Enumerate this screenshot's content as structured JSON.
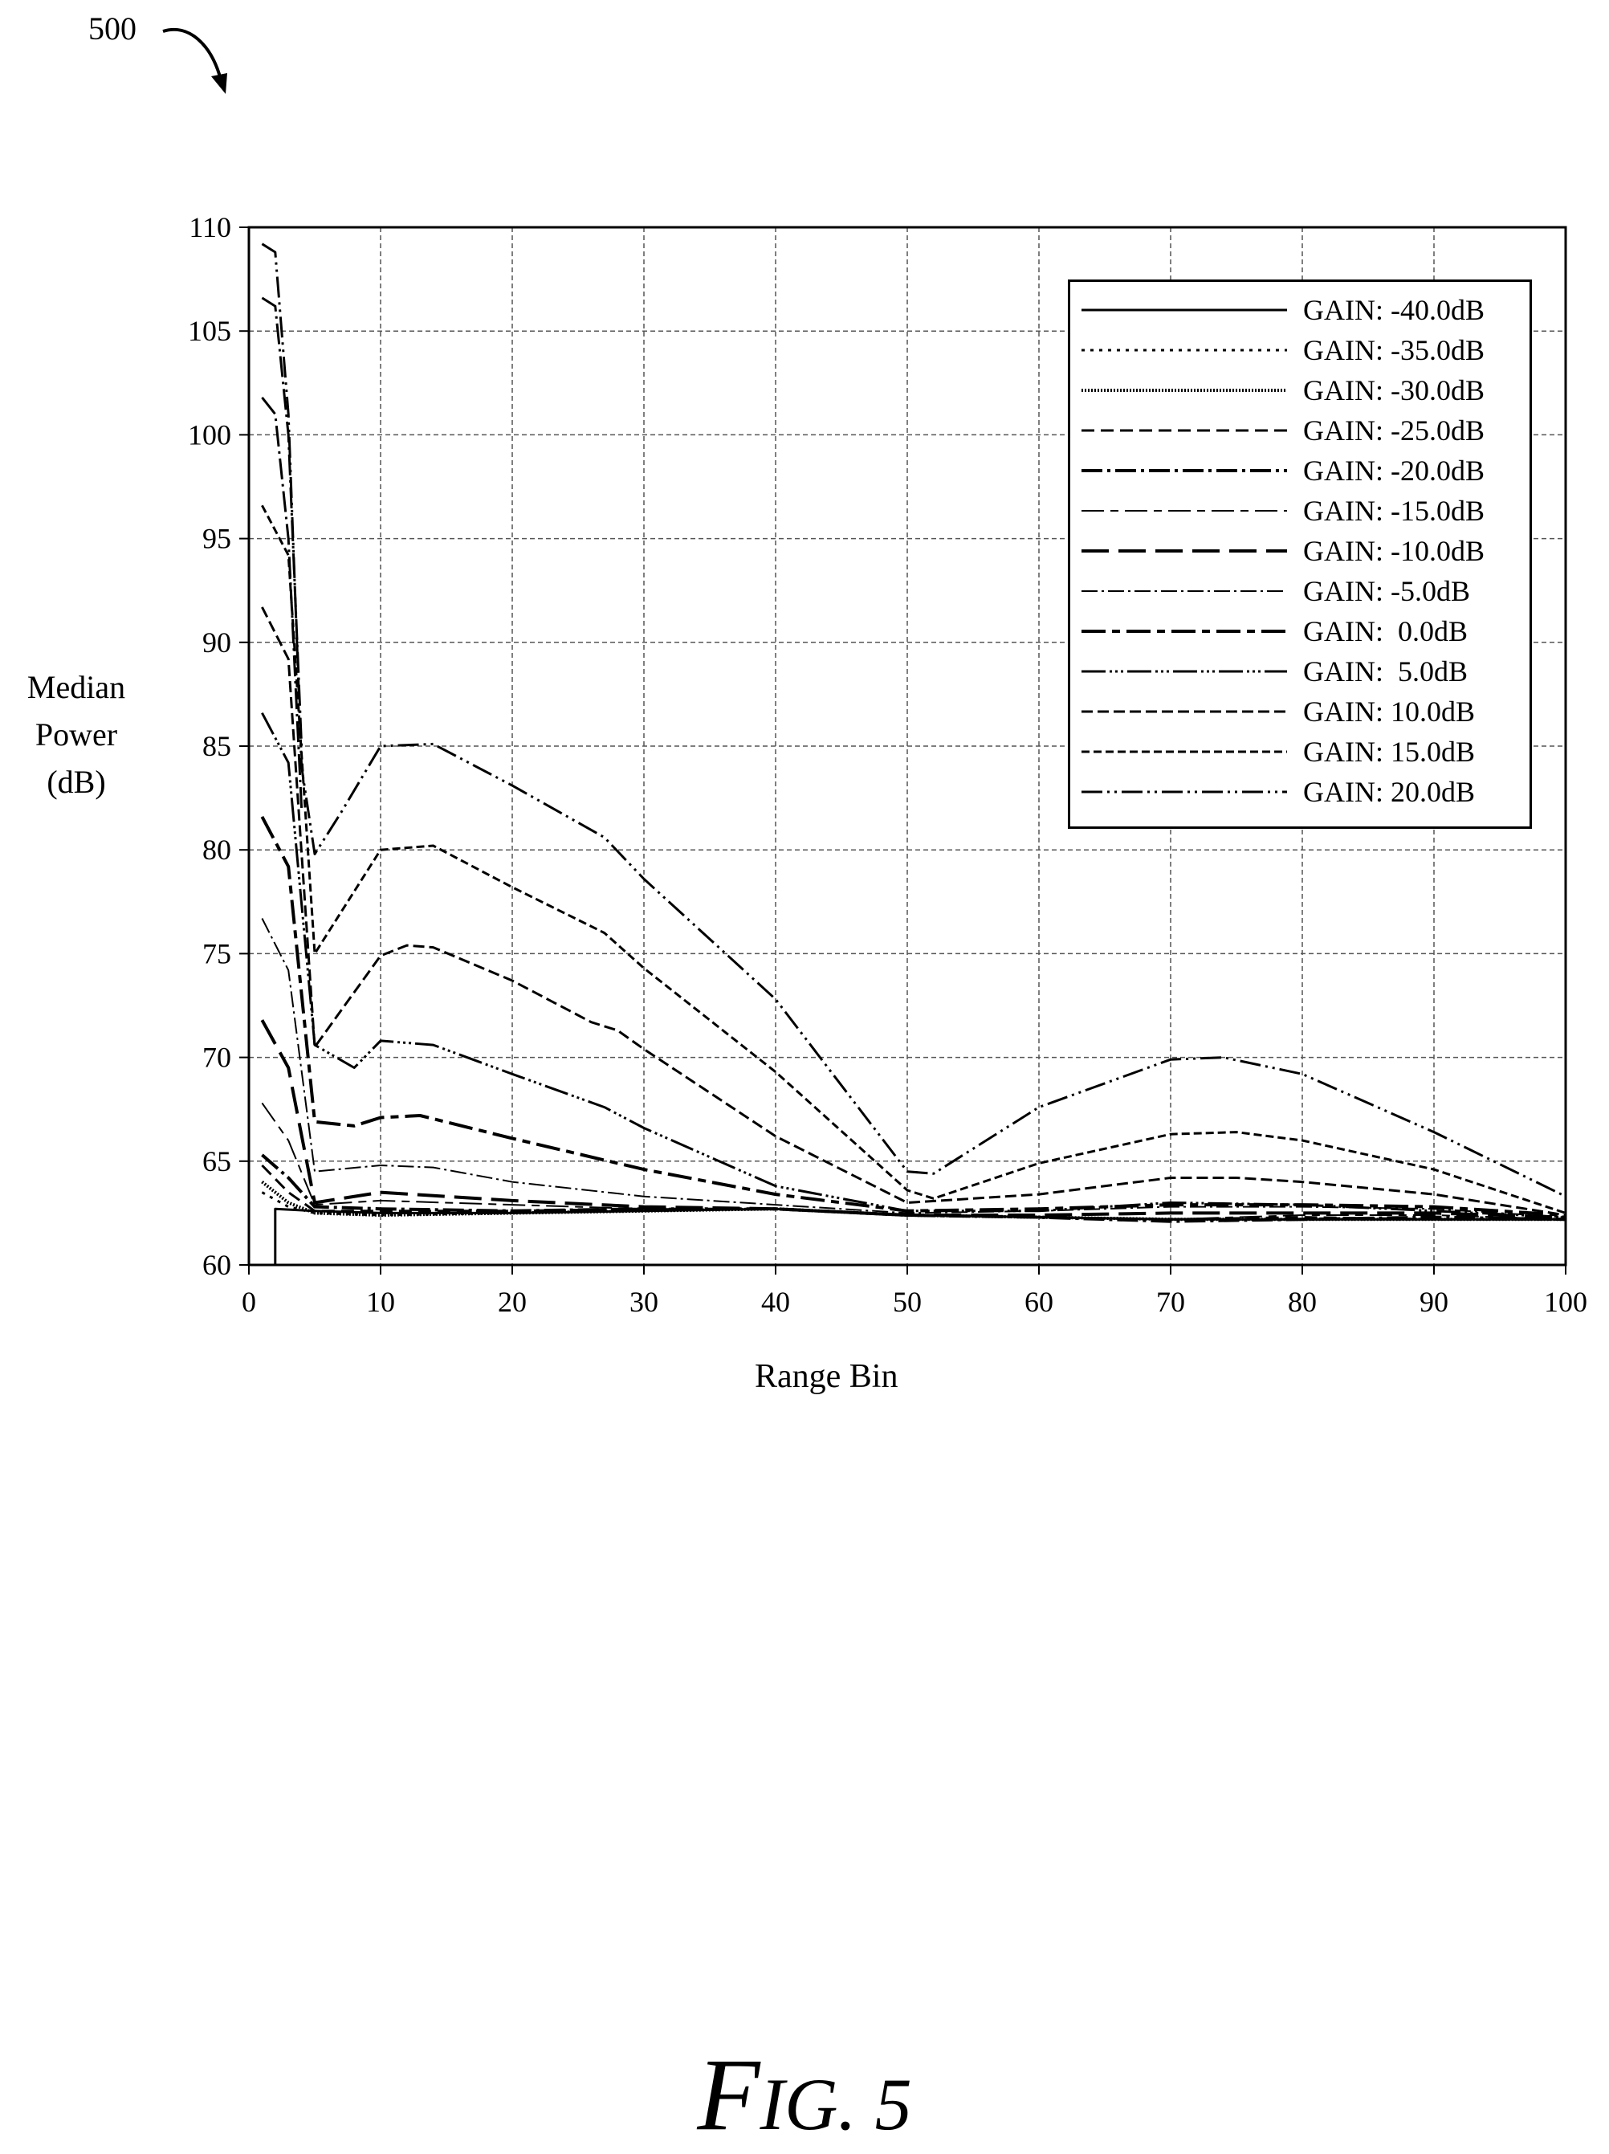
{
  "figure": {
    "ref_number": "500",
    "caption_F": "F",
    "caption_rest": "IG. 5"
  },
  "chart_data": {
    "type": "line",
    "title": "",
    "xlabel": "Range Bin",
    "ylabel_lines": [
      "Median",
      "Power",
      "(dB)"
    ],
    "xlim": [
      0,
      100
    ],
    "ylim": [
      60,
      110
    ],
    "xticks": [
      0,
      10,
      20,
      30,
      40,
      50,
      60,
      70,
      80,
      90,
      100
    ],
    "yticks": [
      60,
      65,
      70,
      75,
      80,
      85,
      90,
      95,
      100,
      105,
      110
    ],
    "grid": true,
    "legend_position": "top-right",
    "series": [
      {
        "name": "GAIN: -40.0dB",
        "dash": "",
        "width": 3,
        "points": [
          [
            2,
            60
          ],
          [
            2,
            62.7
          ],
          [
            5,
            62.6
          ],
          [
            10,
            62.5
          ],
          [
            20,
            62.5
          ],
          [
            30,
            62.6
          ],
          [
            40,
            62.7
          ],
          [
            50,
            62.4
          ],
          [
            60,
            62.3
          ],
          [
            70,
            62.2
          ],
          [
            80,
            62.2
          ],
          [
            90,
            62.2
          ],
          [
            100,
            62.2
          ]
        ]
      },
      {
        "name": "GAIN: -35.0dB",
        "dash": "4 7",
        "width": 3,
        "points": [
          [
            1,
            63.5
          ],
          [
            3,
            62.8
          ],
          [
            5,
            62.5
          ],
          [
            10,
            62.4
          ],
          [
            20,
            62.5
          ],
          [
            30,
            62.6
          ],
          [
            40,
            62.7
          ],
          [
            50,
            62.4
          ],
          [
            60,
            62.3
          ],
          [
            70,
            62.2
          ],
          [
            80,
            62.2
          ],
          [
            90,
            62.2
          ],
          [
            100,
            62.2
          ]
        ]
      },
      {
        "name": "GAIN: -30.0dB",
        "dash": "2 2",
        "width": 4,
        "points": [
          [
            1,
            64.0
          ],
          [
            3,
            63.0
          ],
          [
            5,
            62.5
          ],
          [
            10,
            62.4
          ],
          [
            20,
            62.5
          ],
          [
            30,
            62.6
          ],
          [
            40,
            62.7
          ],
          [
            50,
            62.4
          ],
          [
            60,
            62.3
          ],
          [
            70,
            62.2
          ],
          [
            80,
            62.2
          ],
          [
            90,
            62.2
          ],
          [
            100,
            62.2
          ]
        ]
      },
      {
        "name": "GAIN: -25.0dB",
        "dash": "16 8",
        "width": 3,
        "points": [
          [
            1,
            64.8
          ],
          [
            3,
            63.5
          ],
          [
            5,
            62.6
          ],
          [
            10,
            62.6
          ],
          [
            20,
            62.6
          ],
          [
            30,
            62.7
          ],
          [
            40,
            62.7
          ],
          [
            50,
            62.4
          ],
          [
            60,
            62.3
          ],
          [
            70,
            62.2
          ],
          [
            80,
            62.3
          ],
          [
            90,
            62.2
          ],
          [
            100,
            62.2
          ]
        ]
      },
      {
        "name": "GAIN: -20.0dB",
        "dash": "26 6 4 6",
        "width": 4,
        "points": [
          [
            1,
            65.3
          ],
          [
            3,
            64.2
          ],
          [
            5,
            62.8
          ],
          [
            10,
            62.7
          ],
          [
            20,
            62.6
          ],
          [
            30,
            62.7
          ],
          [
            40,
            62.7
          ],
          [
            50,
            62.4
          ],
          [
            60,
            62.3
          ],
          [
            70,
            62.1
          ],
          [
            80,
            62.2
          ],
          [
            90,
            62.3
          ],
          [
            100,
            62.2
          ]
        ]
      },
      {
        "name": "GAIN: -15.0dB",
        "dash": "28 8 10 8",
        "width": 2,
        "points": [
          [
            1,
            67.8
          ],
          [
            3,
            66.0
          ],
          [
            5,
            62.9
          ],
          [
            10,
            63.1
          ],
          [
            20,
            62.9
          ],
          [
            30,
            62.7
          ],
          [
            40,
            62.7
          ],
          [
            50,
            62.4
          ],
          [
            60,
            62.3
          ],
          [
            70,
            62.2
          ],
          [
            80,
            62.4
          ],
          [
            90,
            62.4
          ],
          [
            100,
            62.2
          ]
        ]
      },
      {
        "name": "GAIN: -10.0dB",
        "dash": "34 12",
        "width": 4,
        "points": [
          [
            1,
            71.8
          ],
          [
            3,
            69.5
          ],
          [
            5,
            63.0
          ],
          [
            10,
            63.5
          ],
          [
            20,
            63.1
          ],
          [
            30,
            62.8
          ],
          [
            40,
            62.7
          ],
          [
            50,
            62.4
          ],
          [
            60,
            62.4
          ],
          [
            70,
            62.5
          ],
          [
            80,
            62.5
          ],
          [
            90,
            62.5
          ],
          [
            100,
            62.3
          ]
        ]
      },
      {
        "name": "GAIN: -5.0dB",
        "dash": "20 5 3 5",
        "width": 2,
        "points": [
          [
            1,
            76.7
          ],
          [
            3,
            74.2
          ],
          [
            5,
            64.5
          ],
          [
            10,
            64.8
          ],
          [
            14,
            64.7
          ],
          [
            20,
            64.0
          ],
          [
            30,
            63.3
          ],
          [
            40,
            62.9
          ],
          [
            50,
            62.5
          ],
          [
            60,
            62.6
          ],
          [
            70,
            62.8
          ],
          [
            80,
            62.8
          ],
          [
            90,
            62.7
          ],
          [
            100,
            62.3
          ]
        ]
      },
      {
        "name": "GAIN:  0.0dB",
        "dash": "30 8 10 8",
        "width": 4,
        "points": [
          [
            1,
            81.6
          ],
          [
            3,
            79.2
          ],
          [
            5,
            66.9
          ],
          [
            8,
            66.7
          ],
          [
            10,
            67.1
          ],
          [
            13,
            67.2
          ],
          [
            20,
            66.1
          ],
          [
            30,
            64.6
          ],
          [
            40,
            63.4
          ],
          [
            50,
            62.6
          ],
          [
            60,
            62.7
          ],
          [
            70,
            62.9
          ],
          [
            80,
            62.9
          ],
          [
            90,
            62.8
          ],
          [
            100,
            62.4
          ]
        ]
      },
      {
        "name": "GAIN:  5.0dB",
        "dash": "30 5 3 4 3 4 3 5",
        "width": 3,
        "points": [
          [
            1,
            86.6
          ],
          [
            3,
            84.2
          ],
          [
            5,
            70.6
          ],
          [
            8,
            69.5
          ],
          [
            10,
            70.8
          ],
          [
            14,
            70.6
          ],
          [
            20,
            69.2
          ],
          [
            27,
            67.6
          ],
          [
            30,
            66.6
          ],
          [
            40,
            63.8
          ],
          [
            50,
            62.6
          ],
          [
            60,
            62.6
          ],
          [
            70,
            63.0
          ],
          [
            80,
            62.9
          ],
          [
            90,
            62.6
          ],
          [
            100,
            62.3
          ]
        ]
      },
      {
        "name": "GAIN: 10.0dB",
        "dash": "14 6",
        "width": 3,
        "points": [
          [
            1,
            91.7
          ],
          [
            3,
            89.2
          ],
          [
            5,
            70.5
          ],
          [
            10,
            74.9
          ],
          [
            12,
            75.4
          ],
          [
            14,
            75.3
          ],
          [
            20,
            73.7
          ],
          [
            26,
            71.7
          ],
          [
            28,
            71.3
          ],
          [
            30,
            70.4
          ],
          [
            40,
            66.2
          ],
          [
            50,
            63.0
          ],
          [
            60,
            63.4
          ],
          [
            70,
            64.2
          ],
          [
            75,
            64.2
          ],
          [
            80,
            64.0
          ],
          [
            90,
            63.4
          ],
          [
            100,
            62.4
          ]
        ]
      },
      {
        "name": "GAIN: 15.0dB",
        "dash": "10 5",
        "width": 3,
        "points": [
          [
            1,
            96.6
          ],
          [
            3,
            94.2
          ],
          [
            5,
            75.0
          ],
          [
            10,
            80.0
          ],
          [
            14,
            80.2
          ],
          [
            20,
            78.2
          ],
          [
            27,
            76.0
          ],
          [
            30,
            74.3
          ],
          [
            40,
            69.3
          ],
          [
            50,
            63.6
          ],
          [
            52,
            63.2
          ],
          [
            60,
            64.9
          ],
          [
            70,
            66.3
          ],
          [
            75,
            66.4
          ],
          [
            80,
            66.0
          ],
          [
            90,
            64.6
          ],
          [
            100,
            62.5
          ]
        ]
      },
      {
        "name": "GAIN: 20.0dB",
        "dash": "26 6 3 6 3 6",
        "width": 3,
        "points": [
          [
            1,
            109.2
          ],
          [
            2,
            108.8
          ],
          [
            3,
            101.0
          ],
          [
            4,
            84.0
          ],
          [
            5,
            79.8
          ],
          [
            7,
            81.8
          ],
          [
            10,
            85.0
          ],
          [
            14,
            85.1
          ],
          [
            20,
            83.1
          ],
          [
            27,
            80.6
          ],
          [
            30,
            78.6
          ],
          [
            40,
            72.8
          ],
          [
            50,
            64.5
          ],
          [
            52,
            64.4
          ],
          [
            60,
            67.6
          ],
          [
            70,
            69.9
          ],
          [
            74,
            70.0
          ],
          [
            80,
            69.2
          ],
          [
            90,
            66.4
          ],
          [
            100,
            63.3
          ]
        ]
      }
    ],
    "extra_spikes": [
      {
        "points": [
          [
            1,
            106.6
          ],
          [
            2,
            106.2
          ],
          [
            3,
            100.0
          ],
          [
            4,
            85.0
          ]
        ]
      },
      {
        "points": [
          [
            1,
            101.8
          ],
          [
            2,
            101.0
          ],
          [
            3,
            95.0
          ],
          [
            4,
            82.0
          ]
        ]
      }
    ]
  }
}
